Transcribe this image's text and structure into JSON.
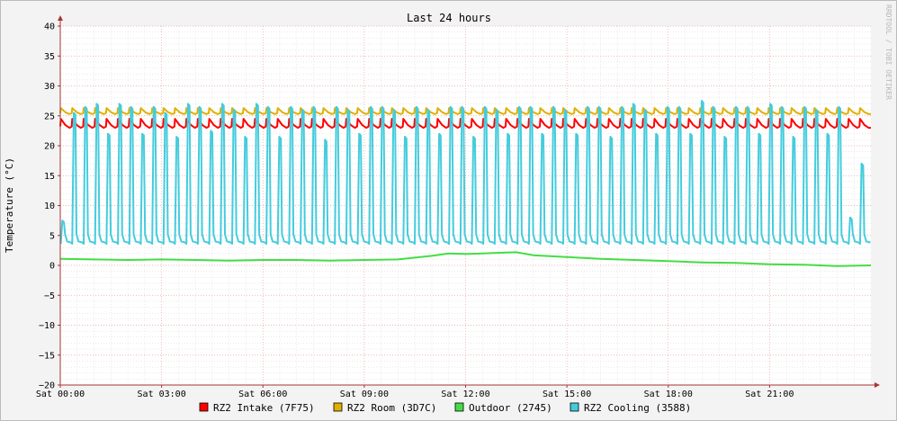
{
  "chart_data": {
    "type": "line",
    "title": "Last 24 hours",
    "ylabel": "Temperature (°C)",
    "xlabel": "",
    "watermark": "RRDTOOL / TOBI OETIKER",
    "ylim": [
      -20,
      40
    ],
    "yticks": [
      40,
      35,
      30,
      25,
      20,
      15,
      10,
      5,
      0,
      -5,
      -10,
      -15,
      -20
    ],
    "x_range_hours": [
      0,
      24
    ],
    "xticks": [
      {
        "h": 0,
        "label": "Sat 00:00"
      },
      {
        "h": 3,
        "label": "Sat 03:00"
      },
      {
        "h": 6,
        "label": "Sat 06:00"
      },
      {
        "h": 9,
        "label": "Sat 09:00"
      },
      {
        "h": 12,
        "label": "Sat 12:00"
      },
      {
        "h": 15,
        "label": "Sat 15:00"
      },
      {
        "h": 18,
        "label": "Sat 18:00"
      },
      {
        "h": 21,
        "label": "Sat 21:00"
      }
    ],
    "grid": true,
    "legend_position": "bottom",
    "series": [
      {
        "name": "RZ2 Intake (7F75)",
        "color": "#ff0000",
        "pattern": "sawtooth",
        "min": 23.0,
        "max": 24.5,
        "cycles": 71
      },
      {
        "name": "RZ2 Room (3D7C)",
        "color": "#e0b000",
        "pattern": "sawtooth",
        "min": 25.3,
        "max": 26.3,
        "cycles": 71
      },
      {
        "name": "Outdoor (2745)",
        "color": "#44dd44",
        "pattern": "smooth",
        "x_hours": [
          0,
          1,
          2,
          3,
          4,
          5,
          6,
          7,
          8,
          9,
          10,
          11,
          11.5,
          12,
          12.5,
          13,
          13.5,
          14,
          15,
          16,
          17,
          18,
          19,
          20,
          21,
          22,
          23,
          24
        ],
        "y": [
          1.1,
          1.0,
          0.9,
          1.0,
          0.9,
          0.8,
          0.9,
          0.9,
          0.8,
          0.9,
          1.0,
          1.6,
          2.0,
          1.9,
          2.0,
          2.1,
          2.2,
          1.7,
          1.4,
          1.1,
          0.9,
          0.7,
          0.5,
          0.4,
          0.2,
          0.1,
          -0.1,
          0.0
        ]
      },
      {
        "name": "RZ2 Cooling (3588)",
        "color": "#44ccdd",
        "pattern": "spikes",
        "base": 4.0,
        "cycles": 71,
        "peaks": [
          7.5,
          25.5,
          26.5,
          27.0,
          22.0,
          27.0,
          26.5,
          22.0,
          26.5,
          25.5,
          21.5,
          27.0,
          26.5,
          22.5,
          27.0,
          26.0,
          21.5,
          27.0,
          26.5,
          21.5,
          26.5,
          26.0,
          26.5,
          21.0,
          26.5,
          26.0,
          22.0,
          26.5,
          26.5,
          26.0,
          21.5,
          26.5,
          26.0,
          22.0,
          26.5,
          26.5,
          21.5,
          26.5,
          26.0,
          22.0,
          26.5,
          26.5,
          22.0,
          26.5,
          26.0,
          22.0,
          26.5,
          26.5,
          21.5,
          26.5,
          27.0,
          26.0,
          22.0,
          26.5,
          26.5,
          22.0,
          27.5,
          26.5,
          21.5,
          26.5,
          26.5,
          22.0,
          27.0,
          26.5,
          21.5,
          26.5,
          26.0,
          22.0,
          26.5,
          8.0,
          17.0
        ]
      }
    ]
  }
}
